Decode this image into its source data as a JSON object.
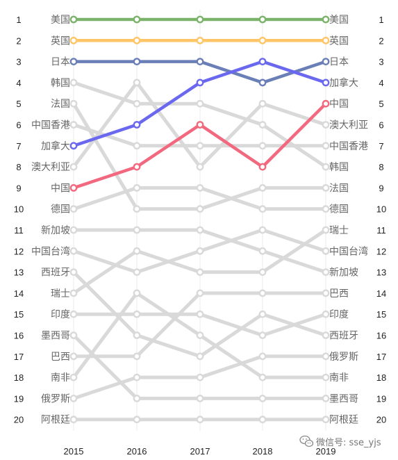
{
  "chart_data": {
    "type": "line",
    "title": "",
    "xlabel": "",
    "ylabel": "",
    "x": [
      "2015",
      "2016",
      "2017",
      "2018",
      "2019"
    ],
    "ranks": [
      "1",
      "2",
      "3",
      "4",
      "5",
      "6",
      "7",
      "8",
      "9",
      "10",
      "11",
      "12",
      "13",
      "14",
      "15",
      "16",
      "17",
      "18",
      "19",
      "20"
    ],
    "ylim": [
      1,
      20
    ],
    "y_reversed": true,
    "grid": "vertical",
    "legend": "labels at both ends of lines",
    "series": [
      {
        "name": "美国",
        "values": [
          1,
          1,
          1,
          1,
          1
        ],
        "color": "#7bb36a",
        "highlight": true
      },
      {
        "name": "英国",
        "values": [
          2,
          2,
          2,
          2,
          2
        ],
        "color": "#ffc567",
        "highlight": true
      },
      {
        "name": "日本",
        "values": [
          3,
          3,
          3,
          4,
          3
        ],
        "color": "#6a7fb7",
        "highlight": true
      },
      {
        "name": "加拿大",
        "values": [
          7,
          6,
          4,
          3,
          4
        ],
        "color": "#6b68f0",
        "highlight": true
      },
      {
        "name": "中国",
        "values": [
          9,
          8,
          6,
          8,
          5
        ],
        "color": "#f2697f",
        "highlight": true
      },
      {
        "name": "韩国",
        "values": [
          4,
          5,
          5,
          6,
          8
        ],
        "color": "#d9d9d9",
        "highlight": false
      },
      {
        "name": "法国",
        "values": [
          5,
          10,
          10,
          9,
          9
        ],
        "color": "#d9d9d9",
        "highlight": false
      },
      {
        "name": "中国香港",
        "values": [
          6,
          7,
          7,
          7,
          7
        ],
        "color": "#d9d9d9",
        "highlight": false
      },
      {
        "name": "澳大利亚",
        "values": [
          8,
          4,
          8,
          5,
          6
        ],
        "color": "#d9d9d9",
        "highlight": false
      },
      {
        "name": "德国",
        "values": [
          10,
          9,
          9,
          10,
          10
        ],
        "color": "#d9d9d9",
        "highlight": false
      },
      {
        "name": "新加坡",
        "values": [
          11,
          11,
          11,
          12,
          13
        ],
        "color": "#d9d9d9",
        "highlight": false
      },
      {
        "name": "中国台湾",
        "values": [
          12,
          13,
          12,
          11,
          12
        ],
        "color": "#d9d9d9",
        "highlight": false
      },
      {
        "name": "西班牙",
        "values": [
          13,
          16,
          17,
          15,
          16
        ],
        "color": "#d9d9d9",
        "highlight": false
      },
      {
        "name": "瑞士",
        "values": [
          14,
          12,
          13,
          13,
          11
        ],
        "color": "#d9d9d9",
        "highlight": false
      },
      {
        "name": "印度",
        "values": [
          15,
          15,
          15,
          16,
          15
        ],
        "color": "#d9d9d9",
        "highlight": false
      },
      {
        "name": "墨西哥",
        "values": [
          16,
          19,
          19,
          19,
          19
        ],
        "color": "#d9d9d9",
        "highlight": false
      },
      {
        "name": "巴西",
        "values": [
          17,
          17,
          14,
          14,
          14
        ],
        "color": "#d9d9d9",
        "highlight": false
      },
      {
        "name": "南非",
        "values": [
          18,
          14,
          16,
          18,
          18
        ],
        "color": "#d9d9d9",
        "highlight": false
      },
      {
        "name": "俄罗斯",
        "values": [
          19,
          18,
          18,
          17,
          17
        ],
        "color": "#d9d9d9",
        "highlight": false
      },
      {
        "name": "阿根廷",
        "values": [
          20,
          20,
          20,
          20,
          20
        ],
        "color": "#d9d9d9",
        "highlight": false
      }
    ]
  },
  "watermark": {
    "icon": "wechat-icon",
    "text": "微信号: sse_yjs"
  }
}
